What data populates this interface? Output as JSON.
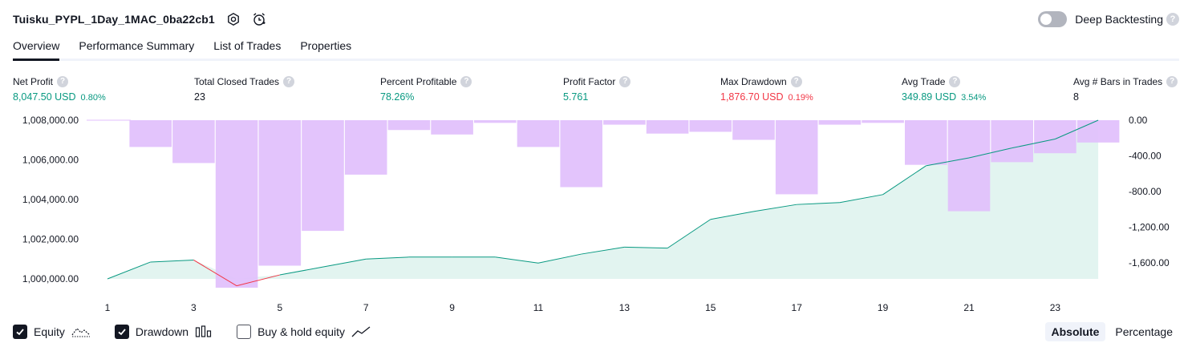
{
  "header": {
    "title": "Tuisku_PYPL_1Day_1MAC_0ba22cb1",
    "deep_backtesting_label": "Deep Backtesting",
    "help_glyph": "?"
  },
  "tabs": [
    {
      "label": "Overview",
      "active": true
    },
    {
      "label": "Performance Summary",
      "active": false
    },
    {
      "label": "List of Trades",
      "active": false
    },
    {
      "label": "Properties",
      "active": false
    }
  ],
  "metrics": [
    {
      "label": "Net Profit",
      "value": "8,047.50 USD",
      "pct": "0.80%",
      "color": "green"
    },
    {
      "label": "Total Closed Trades",
      "value": "23",
      "pct": "",
      "color": "dark"
    },
    {
      "label": "Percent Profitable",
      "value": "78.26%",
      "pct": "",
      "color": "green"
    },
    {
      "label": "Profit Factor",
      "value": "5.761",
      "pct": "",
      "color": "green"
    },
    {
      "label": "Max Drawdown",
      "value": "1,876.70 USD",
      "pct": "0.19%",
      "color": "red"
    },
    {
      "label": "Avg Trade",
      "value": "349.89 USD",
      "pct": "3.54%",
      "color": "green"
    },
    {
      "label": "Avg # Bars in Trades",
      "value": "8",
      "pct": "",
      "color": "dark"
    }
  ],
  "chart_data": {
    "type": "bar",
    "x": [
      1,
      2,
      3,
      4,
      5,
      6,
      7,
      8,
      9,
      10,
      11,
      12,
      13,
      14,
      15,
      16,
      17,
      18,
      19,
      20,
      21,
      22,
      23,
      24
    ],
    "x_tick_labels": [
      "1",
      "3",
      "5",
      "7",
      "9",
      "11",
      "13",
      "15",
      "17",
      "19",
      "21",
      "23"
    ],
    "left_axis": {
      "ticks": [
        "1,008,000.00",
        "1,006,000.00",
        "1,004,000.00",
        "1,002,000.00",
        "1,000,000.00"
      ],
      "range": [
        999500,
        1008000
      ]
    },
    "right_axis": {
      "ticks": [
        "0.00",
        "-400.00",
        "-800.00",
        "-1,200.00",
        "-1,600.00"
      ],
      "range": [
        -1876.7,
        0
      ]
    },
    "series": [
      {
        "name": "Equity",
        "kind": "area",
        "color": "#089981",
        "values": [
          1000000,
          1000850,
          1000950,
          999650,
          1000200,
          1000600,
          1001000,
          1001100,
          1001100,
          1001100,
          1000800,
          1001250,
          1001600,
          1001550,
          1003000,
          1003400,
          1003750,
          1003850,
          1004250,
          1005700,
          1006100,
          1006600,
          1007050,
          1008000
        ]
      },
      {
        "name": "Drawdown",
        "kind": "bar",
        "color": "#e1bffc",
        "values": [
          0,
          -300,
          -480,
          -1876.7,
          -1630,
          -1240,
          -610,
          -110,
          -160,
          -30,
          -300,
          -750,
          -50,
          -150,
          -130,
          -220,
          -830,
          -50,
          -30,
          -500,
          -1020,
          -470,
          -370,
          -250
        ]
      }
    ],
    "legend_placement": "bottom-left"
  },
  "legend": {
    "equity_label": "Equity",
    "drawdown_label": "Drawdown",
    "buyhold_label": "Buy & hold equity"
  },
  "modes": {
    "absolute": "Absolute",
    "percentage": "Percentage"
  },
  "colors": {
    "accent": "#131722",
    "green": "#089981",
    "red": "#f23645",
    "drawdown": "#e1bffc",
    "equity_fill": "#dff3ee"
  }
}
